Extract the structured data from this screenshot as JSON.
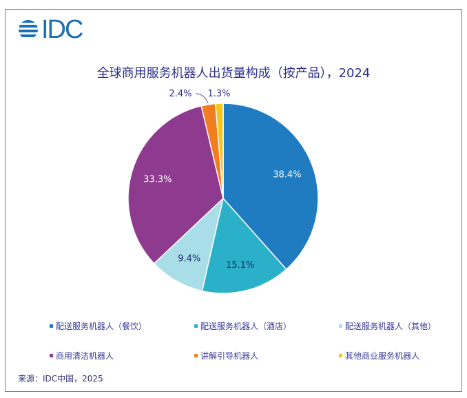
{
  "logo": "IDC",
  "chart_data": {
    "type": "pie",
    "title": "全球商用服务机器人出货量构成（按产品），2024",
    "slices": [
      {
        "label": "配送服务机器人（餐饮）",
        "value": 38.4,
        "display": "38.4%",
        "color": "#1f7cc1"
      },
      {
        "label": "配送服务机器人（酒店）",
        "value": 15.1,
        "display": "15.1%",
        "color": "#2bb0c9"
      },
      {
        "label": "配送服务机器人（其他）",
        "value": 9.4,
        "display": "9.4%",
        "color": "#a9dde8"
      },
      {
        "label": "商用清洁机器人",
        "value": 33.3,
        "display": "33.3%",
        "color": "#8e3a8e"
      },
      {
        "label": "讲解引导机器人",
        "value": 2.4,
        "display": "2.4%",
        "color": "#f07d1e"
      },
      {
        "label": "其他商业服务机器人",
        "value": 1.3,
        "display": "1.3%",
        "color": "#f4c61a"
      }
    ],
    "legend_position": "bottom"
  },
  "source": "来源：IDC中国，2025"
}
